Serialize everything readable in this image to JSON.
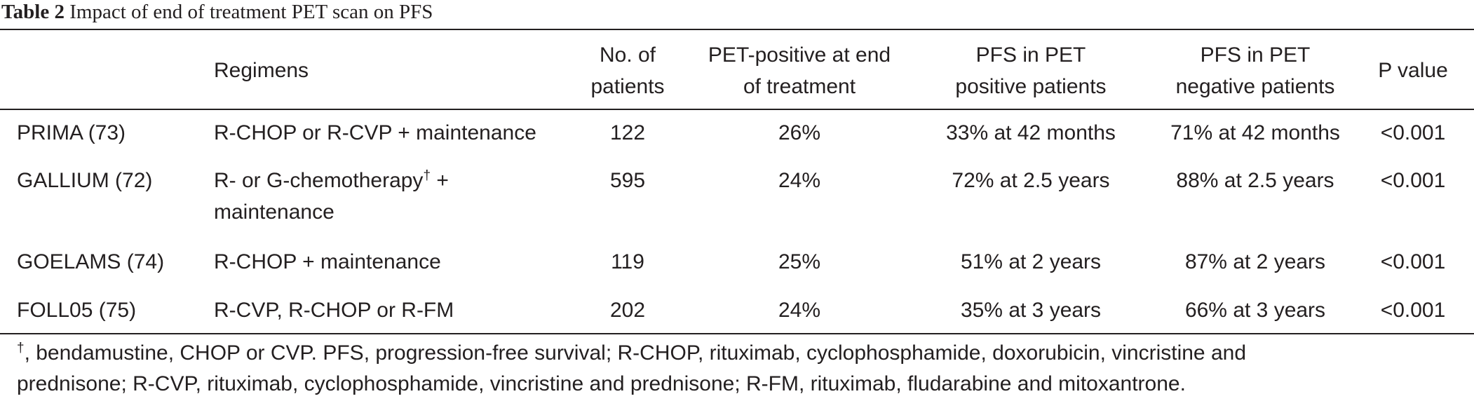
{
  "caption": {
    "label": "Table 2",
    "title": "Impact of end of treatment PET scan on PFS"
  },
  "table": {
    "headers": {
      "regimens": "Regimens",
      "n_line1": "No. of",
      "n_line2": "patients",
      "pet_line1": "PET-positive at end",
      "pet_line2": "of treatment",
      "pfs_pos_line1": "PFS in PET",
      "pfs_pos_line2": "positive patients",
      "pfs_neg_line1": "PFS in PET",
      "pfs_neg_line2": "negative patients",
      "p_value": "P value"
    },
    "rows": [
      {
        "study": "PRIMA (73)",
        "regimen_line1": "R-CHOP or R-CVP + maintenance",
        "regimen_line2": "",
        "n": "122",
        "pet_positive": "26%",
        "pfs_pos": "33% at 42 months",
        "pfs_neg": "71% at 42 months",
        "p": "<0.001"
      },
      {
        "study": "GALLIUM (72)",
        "regimen_line1": "R- or G-chemotherapy",
        "regimen_sup": "†",
        "regimen_line1_tail": " +",
        "regimen_line2": "maintenance",
        "n": "595",
        "pet_positive": "24%",
        "pfs_pos": "72% at 2.5 years",
        "pfs_neg": "88% at 2.5 years",
        "p": "<0.001"
      },
      {
        "study": "GOELAMS (74)",
        "regimen_line1": "R-CHOP + maintenance",
        "regimen_line2": "",
        "n": "119",
        "pet_positive": "25%",
        "pfs_pos": "51% at 2 years",
        "pfs_neg": "87% at 2 years",
        "p": "<0.001"
      },
      {
        "study": "FOLL05 (75)",
        "regimen_line1": "R-CVP, R-CHOP or R-FM",
        "regimen_line2": "",
        "n": "202",
        "pet_positive": "24%",
        "pfs_pos": "35% at 3 years",
        "pfs_neg": "66% at 3 years",
        "p": "<0.001"
      }
    ]
  },
  "footnote": {
    "mark": "†",
    "line1": ", bendamustine, CHOP or CVP. PFS, progression-free survival; R-CHOP, rituximab, cyclophosphamide, doxorubicin, vincristine and",
    "line2": "prednisone; R-CVP, rituximab, cyclophosphamide, vincristine and prednisone; R-FM, rituximab, fludarabine and mitoxantrone."
  }
}
